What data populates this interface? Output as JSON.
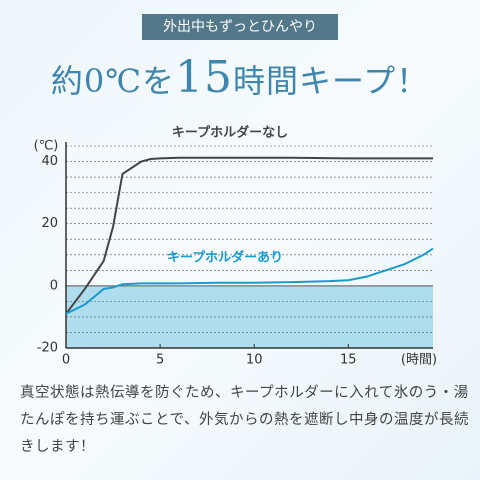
{
  "badge": "外出中もずっとひんやり",
  "headline": [
    "約0℃を",
    "15",
    "時間キープ！"
  ],
  "chart_data": {
    "type": "line",
    "y_unit_label": "(℃)",
    "x_unit_label": "(時間)",
    "xlim": [
      0,
      19.5
    ],
    "xticks": [
      0,
      5,
      10,
      15
    ],
    "ylim": [
      -20,
      45
    ],
    "yticks": [
      -20,
      0,
      20,
      40
    ],
    "minor_grid": [
      -15,
      -10,
      -5,
      5,
      10,
      15,
      25,
      30,
      35,
      45
    ],
    "series": [
      {
        "name": "キープホルダーなし",
        "color": "#444444",
        "x": [
          0,
          1,
          2,
          2.5,
          3,
          3.5,
          4,
          4.5,
          5,
          6,
          8,
          10,
          12,
          15,
          19.5
        ],
        "values": [
          -9,
          -1,
          8,
          19,
          36,
          38,
          40,
          40.8,
          41,
          41.2,
          41.2,
          41.2,
          41.2,
          41,
          41
        ]
      },
      {
        "name": "キープホルダーあり",
        "color": "#1a9bd0",
        "x": [
          0,
          1,
          2,
          2.5,
          3,
          4,
          6,
          8,
          10,
          12,
          14,
          15,
          16,
          17,
          18,
          19,
          19.5
        ],
        "values": [
          -9,
          -6,
          -1,
          -0.5,
          0.5,
          0.8,
          0.8,
          1,
          1,
          1.2,
          1.5,
          1.8,
          3,
          5,
          7,
          10,
          12
        ]
      }
    ]
  },
  "description": "真空状態は熱伝導を防ぐため、キープホルダーに入れて氷のう・湯たんぽを持ち運ぶことで、外気からの熱を遮断し中身の温度が長続きします！"
}
